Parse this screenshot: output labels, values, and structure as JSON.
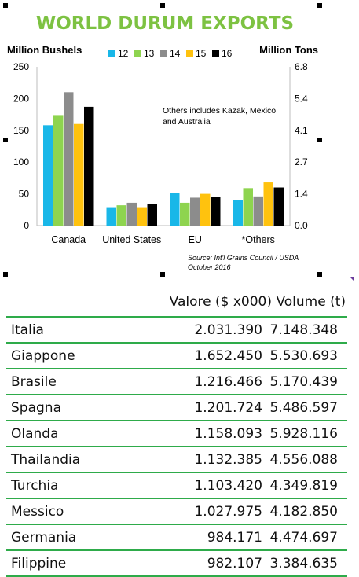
{
  "chart_data": {
    "type": "bar",
    "title": "WORLD DURUM EXPORTS",
    "ylabel": "Million Bushels",
    "y2label": "Million Tons",
    "categories": [
      "Canada",
      "United States",
      "EU",
      "*Others"
    ],
    "series": [
      {
        "name": "12",
        "color": "#19b7e8",
        "values": [
          158,
          29,
          51,
          40
        ]
      },
      {
        "name": "13",
        "color": "#8ed44f",
        "values": [
          174,
          32,
          36,
          59
        ]
      },
      {
        "name": "14",
        "color": "#8c8c8c",
        "values": [
          210,
          36,
          44,
          46
        ]
      },
      {
        "name": "15",
        "color": "#ffc20e",
        "values": [
          160,
          29,
          50,
          68
        ]
      },
      {
        "name": "16",
        "color": "#000000",
        "values": [
          187,
          34,
          45,
          60
        ]
      }
    ],
    "ylim": [
      0,
      250
    ],
    "yticks": [
      "0",
      "50",
      "100",
      "150",
      "200",
      "250"
    ],
    "y2ticks": [
      "0.0",
      "1.4",
      "2.7",
      "4.1",
      "5.4",
      "6.8"
    ],
    "annotation": "Others includes Kazak, Mexico and Australia",
    "source_line1": "Source: Int'l Grains Council / USDA",
    "source_line2": "October 2016",
    "legend_position": "top",
    "grid": false,
    "title_color": "#7dc242"
  },
  "table": {
    "headers": [
      "",
      "Valore ($ x000)",
      "Volume (t)"
    ],
    "rows": [
      [
        "Italia",
        "2.031.390",
        "7.148.348"
      ],
      [
        "Giappone",
        "1.652.450",
        "5.530.693"
      ],
      [
        "Brasile",
        "1.216.466",
        "5.170.439"
      ],
      [
        "Spagna",
        "1.201.724",
        "5.486.597"
      ],
      [
        "Olanda",
        "1.158.093",
        "5.928.116"
      ],
      [
        "Thailandia",
        "1.132.385",
        "4.556.088"
      ],
      [
        "Turchia",
        "1.103.420",
        "4.349.819"
      ],
      [
        "Messico",
        "1.027.975",
        "4.182.850"
      ],
      [
        "Germania",
        "984.171",
        "4.474.697"
      ],
      [
        "Filippine",
        "982.107",
        "3.384.635"
      ]
    ],
    "line_color": "#2eab4a"
  }
}
